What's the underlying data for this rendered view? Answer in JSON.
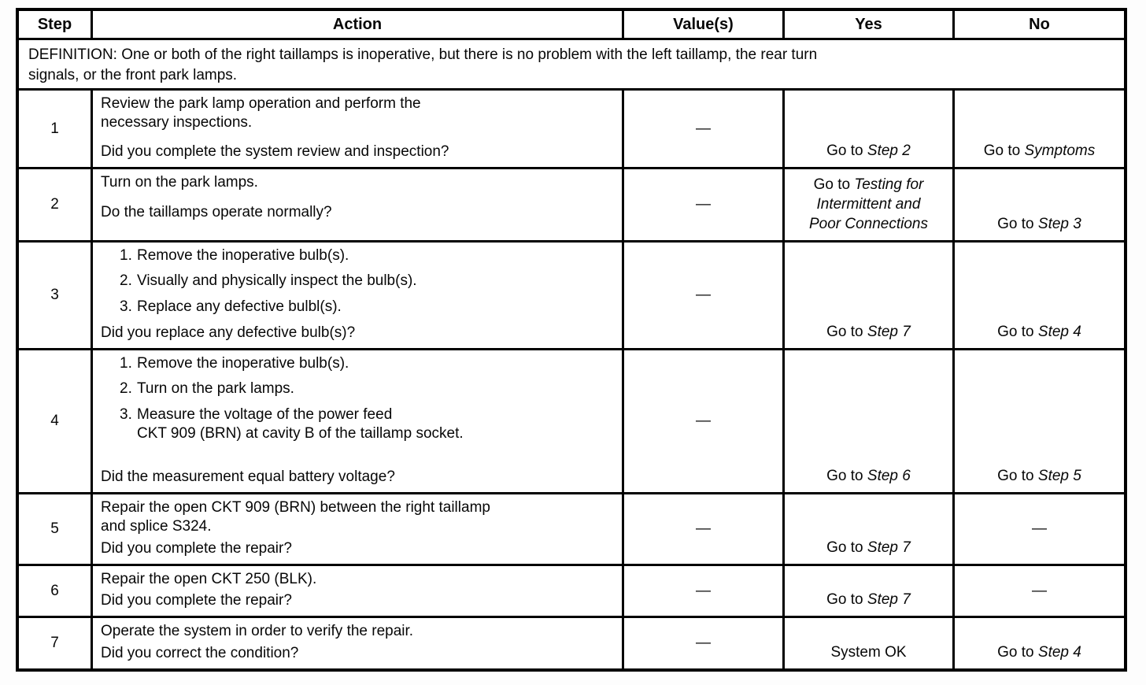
{
  "table": {
    "headers": {
      "step": "Step",
      "action": "Action",
      "values": "Value(s)",
      "yes": "Yes",
      "no": "No"
    },
    "definition": "DEFINITION: One or both of the right taillamps is inoperative, but there is no problem with the left taillamp, the rear turn\nsignals, or the front park lamps.",
    "colors": {
      "line": "#000000",
      "paper": "#ffffff",
      "ink": "#070707"
    },
    "rows": [
      {
        "step": "1",
        "items": [
          {
            "text": "Review the park lamp operation and perform the\nnecessary inspections."
          }
        ],
        "question": "Did you complete the system review and inspection?",
        "value": "—",
        "yes": {
          "pre": "Go to ",
          "em": "Step 2"
        },
        "no": {
          "pre": "Go to ",
          "em": "Symptoms"
        }
      },
      {
        "step": "2",
        "items": [
          {
            "text": "Turn on the park lamps."
          }
        ],
        "question": "Do the taillamps operate normally?",
        "value": "—",
        "yes": {
          "pre": "Go to ",
          "em": "Testing for\nIntermittent and\nPoor Connections"
        },
        "no": {
          "pre": "Go to ",
          "em": "Step 3"
        }
      },
      {
        "step": "3",
        "items": [
          {
            "num": "1.",
            "text": "Remove the inoperative bulb(s)."
          },
          {
            "num": "2.",
            "text": "Visually and physically inspect the bulb(s)."
          },
          {
            "num": "3.",
            "text": "Replace any defective bulbl(s)."
          }
        ],
        "question": "Did you replace any defective bulb(s)?",
        "value": "—",
        "yes": {
          "pre": "Go to ",
          "em": "Step 7"
        },
        "no": {
          "pre": "Go to ",
          "em": "Step 4"
        }
      },
      {
        "step": "4",
        "items": [
          {
            "num": "1.",
            "text": "Remove the inoperative bulb(s)."
          },
          {
            "num": "2.",
            "text": "Turn on the park lamps."
          },
          {
            "num": "3.",
            "text": "Measure the voltage of the power feed\nCKT 909 (BRN) at cavity B of the taillamp socket."
          }
        ],
        "question": "Did the measurement equal battery voltage?",
        "value": "—",
        "yes": {
          "pre": "Go to ",
          "em": "Step 6"
        },
        "no": {
          "pre": "Go to ",
          "em": "Step 5"
        }
      },
      {
        "step": "5",
        "items": [
          {
            "text": "Repair the open CKT 909 (BRN) between the right taillamp\nand splice S324."
          }
        ],
        "question": "Did you complete the repair?",
        "value": "—",
        "yes": {
          "pre": "Go to ",
          "em": "Step 7"
        },
        "no": {
          "pre": "—"
        }
      },
      {
        "step": "6",
        "items": [
          {
            "text": "Repair the open CKT 250 (BLK)."
          }
        ],
        "question": "Did you complete the repair?",
        "value": "—",
        "yes": {
          "pre": "Go to ",
          "em": "Step 7"
        },
        "no": {
          "pre": "—"
        }
      },
      {
        "step": "7",
        "items": [
          {
            "text": "Operate the system in order to verify the repair."
          }
        ],
        "question": "Did you correct the condition?",
        "value": "—",
        "yes": {
          "pre": "System OK"
        },
        "no": {
          "pre": "Go to ",
          "em": "Step 4"
        }
      }
    ]
  }
}
